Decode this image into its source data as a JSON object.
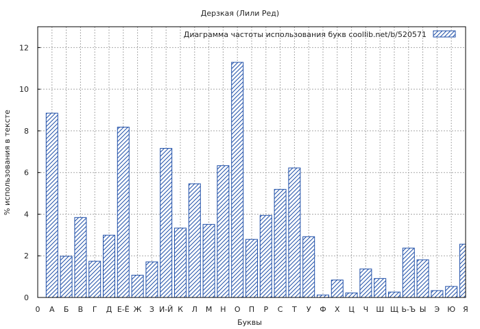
{
  "chart_data": {
    "type": "bar",
    "title": "Дерзкая (Лили Ред)",
    "xlabel": "Буквы",
    "ylabel": "% использования в тексте",
    "legend_label": "Диаграмма частоты использования букв  coollib.net/b/520571",
    "legend_position": "top-right",
    "grid": true,
    "ylim": [
      0,
      13
    ],
    "yticks": [
      0,
      2,
      4,
      6,
      8,
      10,
      12
    ],
    "categories": [
      "0",
      "А",
      "Б",
      "В",
      "Г",
      "Д",
      "Е-Ё",
      "Ж",
      "З",
      "И-Й",
      "К",
      "Л",
      "М",
      "Н",
      "О",
      "П",
      "Р",
      "С",
      "Т",
      "У",
      "Ф",
      "Х",
      "Ц",
      "Ч",
      "Ш",
      "Щ",
      "Ь-Ъ",
      "Ы",
      "Э",
      "Ю",
      "Я"
    ],
    "values": [
      0,
      8.85,
      1.98,
      3.84,
      1.74,
      2.99,
      8.18,
      1.07,
      1.71,
      7.16,
      3.33,
      5.46,
      3.51,
      6.33,
      11.29,
      2.79,
      3.94,
      5.19,
      6.22,
      2.92,
      0.12,
      0.84,
      0.22,
      1.37,
      0.91,
      0.26,
      2.37,
      1.81,
      0.33,
      0.53,
      2.56
    ],
    "colors": {
      "bar_stroke": "#1f4fa8",
      "hatch": "#1f4fa8",
      "grid": "#a8a8a8",
      "axis": "#000000"
    }
  }
}
